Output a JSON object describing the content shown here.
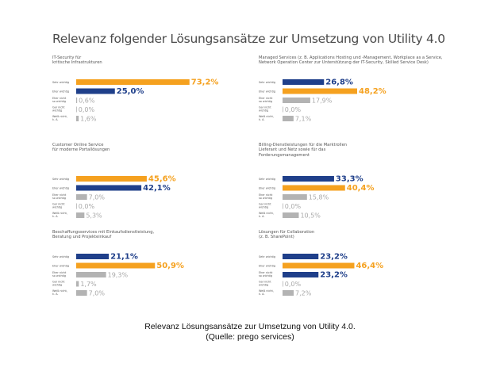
{
  "title": "Relevanz folgender Lösungsansätze zur Umsetzung von Utility 4.0",
  "caption": {
    "line1": "Relevanz Lösungsansätze zur Umsetzung von Utility 4.0.",
    "line2": "(Quelle: prego services)"
  },
  "colors": {
    "orange": "#f5a11f",
    "blue": "#1f3f8a",
    "gray": "#b3b3b3",
    "label": "#555555"
  },
  "chart_data": [
    {
      "type": "bar",
      "title": "IT-Security für\nkritische Infrastrukturen",
      "categories": [
        "Sehr wichtig",
        "Eher wichtig",
        "Eher nicht\nso wichtig",
        "Gar nicht\nwichtig",
        "Weiß nicht,\nk. A."
      ],
      "values": [
        73.2,
        25.0,
        0.6,
        0.0,
        1.6
      ],
      "value_labels": [
        "73,2%",
        "25,0%",
        "0,6%",
        "0,0%",
        "1,6%"
      ],
      "colors": [
        "orange",
        "blue",
        "gray",
        "gray",
        "gray"
      ],
      "xlim": [
        0,
        100
      ]
    },
    {
      "type": "bar",
      "title": "Managed Services (z. B. Applications Hosting und -Management, Workplace as a Service,\nNetwork Operation Center zur Unterstützung der IT-Security, Skilled Service Desk)",
      "categories": [
        "Sehr wichtig",
        "Eher wichtig",
        "Eher nicht\nso wichtig",
        "Gar nicht\nwichtig",
        "Weiß nicht,\nk. A."
      ],
      "values": [
        26.8,
        48.2,
        17.9,
        0.0,
        7.1
      ],
      "value_labels": [
        "26,8%",
        "48,2%",
        "17,9%",
        "0,0%",
        "7,1%"
      ],
      "colors": [
        "blue",
        "orange",
        "gray",
        "gray",
        "gray"
      ],
      "xlim": [
        0,
        100
      ]
    },
    {
      "type": "bar",
      "title": "Customer Online Service\nfür moderne Portallösungen",
      "categories": [
        "Sehr wichtig",
        "Eher wichtig",
        "Eher nicht\nso wichtig",
        "Gar nicht\nwichtig",
        "Weiß nicht,\nk. A."
      ],
      "values": [
        45.6,
        42.1,
        7.0,
        0.0,
        5.3
      ],
      "value_labels": [
        "45,6%",
        "42,1%",
        "7,0%",
        "0,0%",
        "5,3%"
      ],
      "colors": [
        "orange",
        "blue",
        "gray",
        "gray",
        "gray"
      ],
      "xlim": [
        0,
        100
      ]
    },
    {
      "type": "bar",
      "title": "Billing-Dienstleistungen für die Marktrollen\nLieferant und Netz sowie für das\nForderungsmanagement",
      "categories": [
        "Sehr wichtig",
        "Eher wichtig",
        "Eher nicht\nso wichtig",
        "Gar nicht\nwichtig",
        "Weiß nicht,\nk. A."
      ],
      "values": [
        33.3,
        40.4,
        15.8,
        0.0,
        10.5
      ],
      "value_labels": [
        "33,3%",
        "40,4%",
        "15,8%",
        "0,0%",
        "10,5%"
      ],
      "colors": [
        "blue",
        "orange",
        "gray",
        "gray",
        "gray"
      ],
      "xlim": [
        0,
        100
      ]
    },
    {
      "type": "bar",
      "title": "Beschaffungsservices mit Einkaufsdienstleistung,\nBeratung und Projekteinkauf",
      "categories": [
        "Sehr wichtig",
        "Eher wichtig",
        "Eher nicht\nso wichtig",
        "Gar nicht\nwichtig",
        "Weiß nicht,\nk. A."
      ],
      "values": [
        21.1,
        50.9,
        19.3,
        1.7,
        7.0
      ],
      "value_labels": [
        "21,1%",
        "50,9%",
        "19,3%",
        "1,7%",
        "7,0%"
      ],
      "colors": [
        "blue",
        "orange",
        "gray",
        "gray",
        "gray"
      ],
      "xlim": [
        0,
        100
      ]
    },
    {
      "type": "bar",
      "title": "Lösungen für Collaboration\n(z. B. SharePoint)",
      "categories": [
        "Sehr wichtig",
        "Eher wichtig",
        "Eher nicht\nso wichtig",
        "Gar nicht\nwichtig",
        "Weiß nicht,\nk. A."
      ],
      "values": [
        23.2,
        46.4,
        23.2,
        0.0,
        7.2
      ],
      "value_labels": [
        "23,2%",
        "46,4%",
        "23,2%",
        "0,0%",
        "7,2%"
      ],
      "colors": [
        "blue",
        "orange",
        "blue",
        "gray",
        "gray"
      ],
      "xlim": [
        0,
        100
      ]
    }
  ]
}
